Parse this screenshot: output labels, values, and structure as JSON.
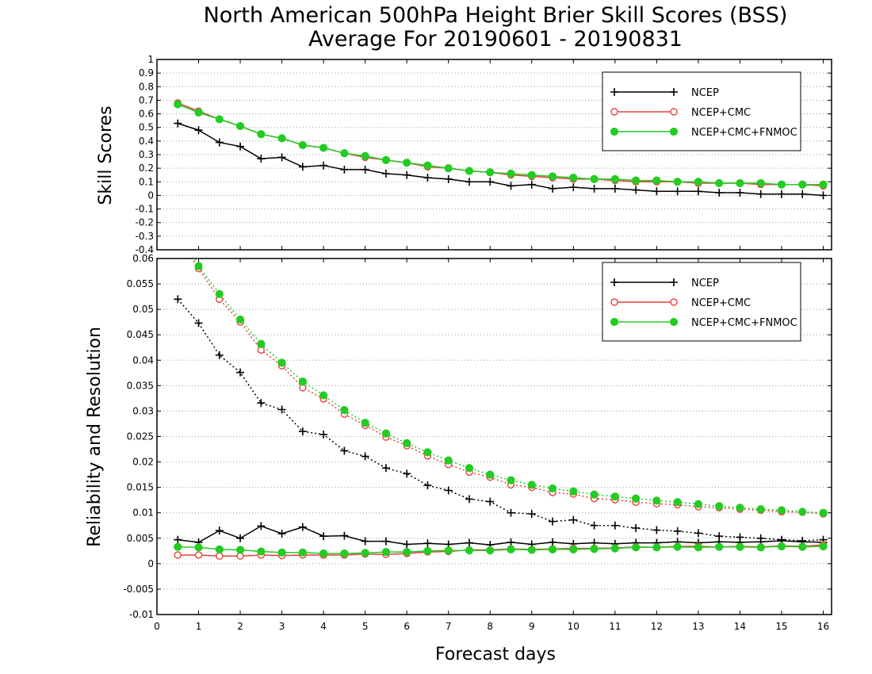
{
  "figure": {
    "title_line1": "North American 500hPa Height Brier Skill Scores (BSS)",
    "title_line2": "Average For 20190601 - 20190831",
    "xlabel": "Forecast days",
    "x_ticks": [
      "0",
      "1",
      "2",
      "3",
      "4",
      "5",
      "6",
      "7",
      "8",
      "9",
      "10",
      "11",
      "12",
      "13",
      "14",
      "15",
      "16"
    ],
    "legend_entries": [
      "NCEP",
      "NCEP+CMC",
      "NCEP+CMC+FNMOC"
    ]
  },
  "colors": {
    "NCEP": "#000000",
    "NCEP+CMC": "#e8413c",
    "NCEP+CMC+FNMOC": "#22cc22",
    "grid": "#9a9a9a"
  },
  "chart_data": [
    {
      "type": "line",
      "ylabel": "Skill Scores",
      "xlim": [
        0,
        16.2
      ],
      "ylim": [
        -0.4,
        1
      ],
      "y_ticks": [
        "-0.4",
        "-0.3",
        "-0.2",
        "-0.1",
        "0",
        "0.1",
        "0.2",
        "0.3",
        "0.4",
        "0.5",
        "0.6",
        "0.7",
        "0.8",
        "0.9",
        "1"
      ],
      "grid": "horizontal dotted",
      "legend": "top-right",
      "x": [
        0.5,
        1,
        1.5,
        2,
        2.5,
        3,
        3.5,
        4,
        4.5,
        5,
        5.5,
        6,
        6.5,
        7,
        7.5,
        8,
        8.5,
        9,
        9.5,
        10,
        10.5,
        11,
        11.5,
        12,
        12.5,
        13,
        13.5,
        14,
        14.5,
        15,
        15.5,
        16
      ],
      "series": [
        {
          "name": "NCEP",
          "marker": "plus",
          "style": "solid",
          "values": [
            0.53,
            0.48,
            0.39,
            0.36,
            0.27,
            0.28,
            0.21,
            0.22,
            0.19,
            0.19,
            0.16,
            0.15,
            0.13,
            0.12,
            0.1,
            0.1,
            0.07,
            0.08,
            0.05,
            0.06,
            0.05,
            0.05,
            0.04,
            0.03,
            0.03,
            0.03,
            0.02,
            0.02,
            0.01,
            0.01,
            0.01,
            0.0
          ]
        },
        {
          "name": "NCEP+CMC",
          "marker": "open-circle",
          "style": "solid",
          "values": [
            0.68,
            0.62,
            0.56,
            0.51,
            0.45,
            0.42,
            0.37,
            0.35,
            0.31,
            0.28,
            0.26,
            0.24,
            0.21,
            0.2,
            0.18,
            0.17,
            0.15,
            0.14,
            0.13,
            0.12,
            0.12,
            0.11,
            0.1,
            0.1,
            0.1,
            0.09,
            0.09,
            0.09,
            0.08,
            0.08,
            0.08,
            0.07
          ]
        },
        {
          "name": "NCEP+CMC+FNMOC",
          "marker": "filled-circle",
          "style": "solid",
          "values": [
            0.67,
            0.61,
            0.56,
            0.51,
            0.45,
            0.42,
            0.37,
            0.35,
            0.31,
            0.29,
            0.26,
            0.24,
            0.22,
            0.2,
            0.18,
            0.17,
            0.16,
            0.15,
            0.14,
            0.13,
            0.12,
            0.12,
            0.11,
            0.11,
            0.1,
            0.1,
            0.09,
            0.09,
            0.09,
            0.08,
            0.08,
            0.08
          ]
        }
      ]
    },
    {
      "type": "line",
      "ylabel": "Reliability and Resolution",
      "xlabel": "Forecast days",
      "xlim": [
        0,
        16.2
      ],
      "ylim": [
        -0.01,
        0.06
      ],
      "y_ticks": [
        "-0.01",
        "-0.005",
        "0",
        "0.005",
        "0.01",
        "0.015",
        "0.02",
        "0.025",
        "0.03",
        "0.035",
        "0.04",
        "0.045",
        "0.05",
        "0.055",
        "0.06"
      ],
      "grid": "horizontal dotted",
      "legend": "top-right",
      "x": [
        0.5,
        1,
        1.5,
        2,
        2.5,
        3,
        3.5,
        4,
        4.5,
        5,
        5.5,
        6,
        6.5,
        7,
        7.5,
        8,
        8.5,
        9,
        9.5,
        10,
        10.5,
        11,
        11.5,
        12,
        12.5,
        13,
        13.5,
        14,
        14.5,
        15,
        15.5,
        16
      ],
      "series": [
        {
          "name": "NCEP",
          "component": "resolution",
          "marker": "plus",
          "style": "dotted",
          "values": [
            0.052,
            0.0473,
            0.041,
            0.0376,
            0.0316,
            0.0303,
            0.026,
            0.0254,
            0.0222,
            0.0211,
            0.0188,
            0.0177,
            0.0154,
            0.0144,
            0.0127,
            0.0122,
            0.01,
            0.0098,
            0.0083,
            0.0086,
            0.0075,
            0.0075,
            0.007,
            0.0066,
            0.0064,
            0.006,
            0.0054,
            0.0052,
            0.005,
            0.0047,
            0.0045,
            0.0047
          ]
        },
        {
          "name": "NCEP+CMC",
          "component": "resolution",
          "marker": "open-circle",
          "style": "dotted",
          "values": [
            0.064,
            0.058,
            0.052,
            0.0475,
            0.042,
            0.0389,
            0.0346,
            0.0324,
            0.0294,
            0.0272,
            0.0249,
            0.0232,
            0.0212,
            0.0195,
            0.018,
            0.017,
            0.0155,
            0.015,
            0.014,
            0.0137,
            0.0128,
            0.0126,
            0.0121,
            0.0118,
            0.0116,
            0.0112,
            0.011,
            0.0107,
            0.0105,
            0.0102,
            0.0101,
            0.0098
          ]
        },
        {
          "name": "NCEP+CMC+FNMOC",
          "component": "resolution",
          "marker": "filled-circle",
          "style": "dotted",
          "values": [
            0.065,
            0.0585,
            0.053,
            0.048,
            0.0432,
            0.0395,
            0.0358,
            0.0331,
            0.0302,
            0.0277,
            0.0256,
            0.0237,
            0.0219,
            0.0203,
            0.0188,
            0.0175,
            0.0164,
            0.0155,
            0.0148,
            0.0142,
            0.0136,
            0.0132,
            0.0128,
            0.0124,
            0.0121,
            0.0117,
            0.0113,
            0.011,
            0.0107,
            0.0105,
            0.0102,
            0.01
          ]
        },
        {
          "name": "NCEP",
          "component": "reliability",
          "marker": "plus",
          "style": "solid",
          "values": [
            0.0047,
            0.0042,
            0.0065,
            0.005,
            0.0074,
            0.0059,
            0.0072,
            0.0054,
            0.0055,
            0.0044,
            0.0044,
            0.0038,
            0.004,
            0.0038,
            0.0041,
            0.0037,
            0.0042,
            0.0038,
            0.0042,
            0.0039,
            0.0041,
            0.0039,
            0.0041,
            0.0041,
            0.0043,
            0.0041,
            0.0043,
            0.0042,
            0.0043,
            0.0045,
            0.0043,
            0.0042
          ]
        },
        {
          "name": "NCEP+CMC",
          "component": "reliability",
          "marker": "open-circle",
          "style": "solid",
          "values": [
            0.0017,
            0.0017,
            0.0015,
            0.0015,
            0.0017,
            0.0016,
            0.0017,
            0.0017,
            0.0017,
            0.0019,
            0.0018,
            0.002,
            0.0023,
            0.0024,
            0.0027,
            0.0027,
            0.0029,
            0.0028,
            0.0029,
            0.003,
            0.003,
            0.0031,
            0.0033,
            0.0032,
            0.0034,
            0.0034,
            0.0033,
            0.0034,
            0.0033,
            0.0035,
            0.0034,
            0.0037
          ]
        },
        {
          "name": "NCEP+CMC+FNMOC",
          "component": "reliability",
          "marker": "filled-circle",
          "style": "solid",
          "values": [
            0.0033,
            0.0032,
            0.0028,
            0.0027,
            0.0024,
            0.0022,
            0.0022,
            0.002,
            0.002,
            0.0021,
            0.0023,
            0.0023,
            0.0025,
            0.0026,
            0.0026,
            0.0026,
            0.0028,
            0.0027,
            0.0028,
            0.0028,
            0.0029,
            0.003,
            0.0032,
            0.0032,
            0.0033,
            0.0032,
            0.0033,
            0.0033,
            0.0032,
            0.0034,
            0.0033,
            0.0034
          ]
        }
      ]
    }
  ]
}
